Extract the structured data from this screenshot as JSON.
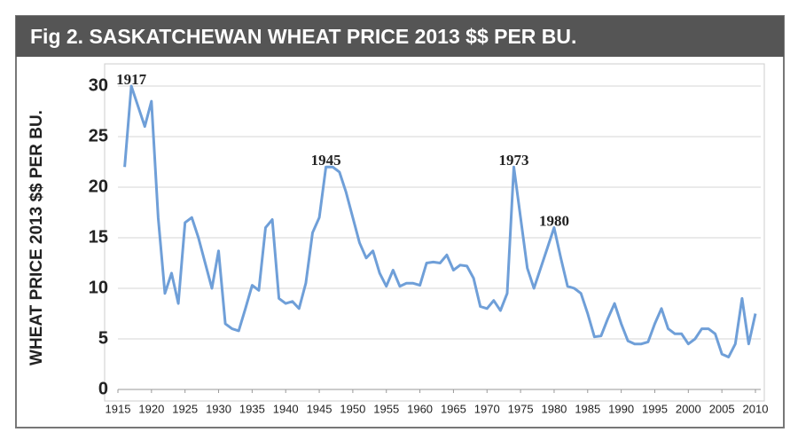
{
  "chart_data": {
    "type": "line",
    "title": "Fig 2.  SASKATCHEWAN WHEAT PRICE 2013 $$ PER BU.",
    "y_label": "WHEAT PRICE 2013 $$ PER BU.",
    "x": [
      1916,
      1917,
      1918,
      1919,
      1920,
      1921,
      1922,
      1923,
      1924,
      1925,
      1926,
      1927,
      1928,
      1929,
      1930,
      1931,
      1932,
      1933,
      1934,
      1935,
      1936,
      1937,
      1938,
      1939,
      1940,
      1941,
      1942,
      1943,
      1944,
      1945,
      1946,
      1947,
      1948,
      1949,
      1950,
      1951,
      1952,
      1953,
      1954,
      1955,
      1956,
      1957,
      1958,
      1959,
      1960,
      1961,
      1962,
      1963,
      1964,
      1965,
      1966,
      1967,
      1968,
      1969,
      1970,
      1971,
      1972,
      1973,
      1974,
      1975,
      1976,
      1977,
      1978,
      1979,
      1980,
      1981,
      1982,
      1983,
      1984,
      1985,
      1986,
      1987,
      1988,
      1989,
      1990,
      1991,
      1992,
      1993,
      1994,
      1995,
      1996,
      1997,
      1998,
      1999,
      2000,
      2001,
      2002,
      2003,
      2004,
      2005,
      2006,
      2007,
      2008,
      2009,
      2010
    ],
    "series": [
      {
        "color": "#6f9fd8",
        "values": [
          22,
          30,
          28,
          26,
          28.5,
          17,
          9.5,
          11.5,
          8.5,
          16.5,
          17,
          15,
          12.5,
          10,
          13.7,
          6.5,
          6,
          5.8,
          8,
          10.3,
          9.8,
          16,
          16.8,
          9,
          8.5,
          8.7,
          8,
          10.5,
          15.5,
          17,
          22,
          22,
          21.5,
          19.5,
          17,
          14.5,
          13,
          13.7,
          11.5,
          10.2,
          11.8,
          10.2,
          10.5,
          10.5,
          10.3,
          12.5,
          12.6,
          12.5,
          13.3,
          11.8,
          12.3,
          12.2,
          11,
          8.2,
          8,
          8.8,
          7.8,
          9.5,
          22,
          17,
          12,
          10,
          12,
          14,
          16,
          13,
          10.2,
          10,
          9.5,
          7.5,
          5.2,
          5.3,
          7,
          8.5,
          6.5,
          4.8,
          4.5,
          4.5,
          4.7,
          6.5,
          8,
          6,
          5.5,
          5.5,
          4.5,
          5,
          6,
          6,
          5.5,
          3.5,
          3.2,
          4.5,
          9,
          4.5,
          7.5
        ]
      }
    ],
    "annotations": [
      {
        "label": "1917",
        "x": 1917
      },
      {
        "label": "1945",
        "x": 1946
      },
      {
        "label": "1973",
        "x": 1974
      },
      {
        "label": "1980",
        "x": 1980
      }
    ],
    "xlim": [
      1915,
      2010
    ],
    "xticks": [
      1915,
      1920,
      1925,
      1930,
      1935,
      1940,
      1945,
      1950,
      1955,
      1960,
      1965,
      1970,
      1975,
      1980,
      1985,
      1990,
      1995,
      2000,
      2005,
      2010
    ],
    "ylim": [
      0,
      30
    ],
    "yticks": [
      0,
      5,
      10,
      15,
      20,
      25,
      30
    ],
    "grid": true
  }
}
